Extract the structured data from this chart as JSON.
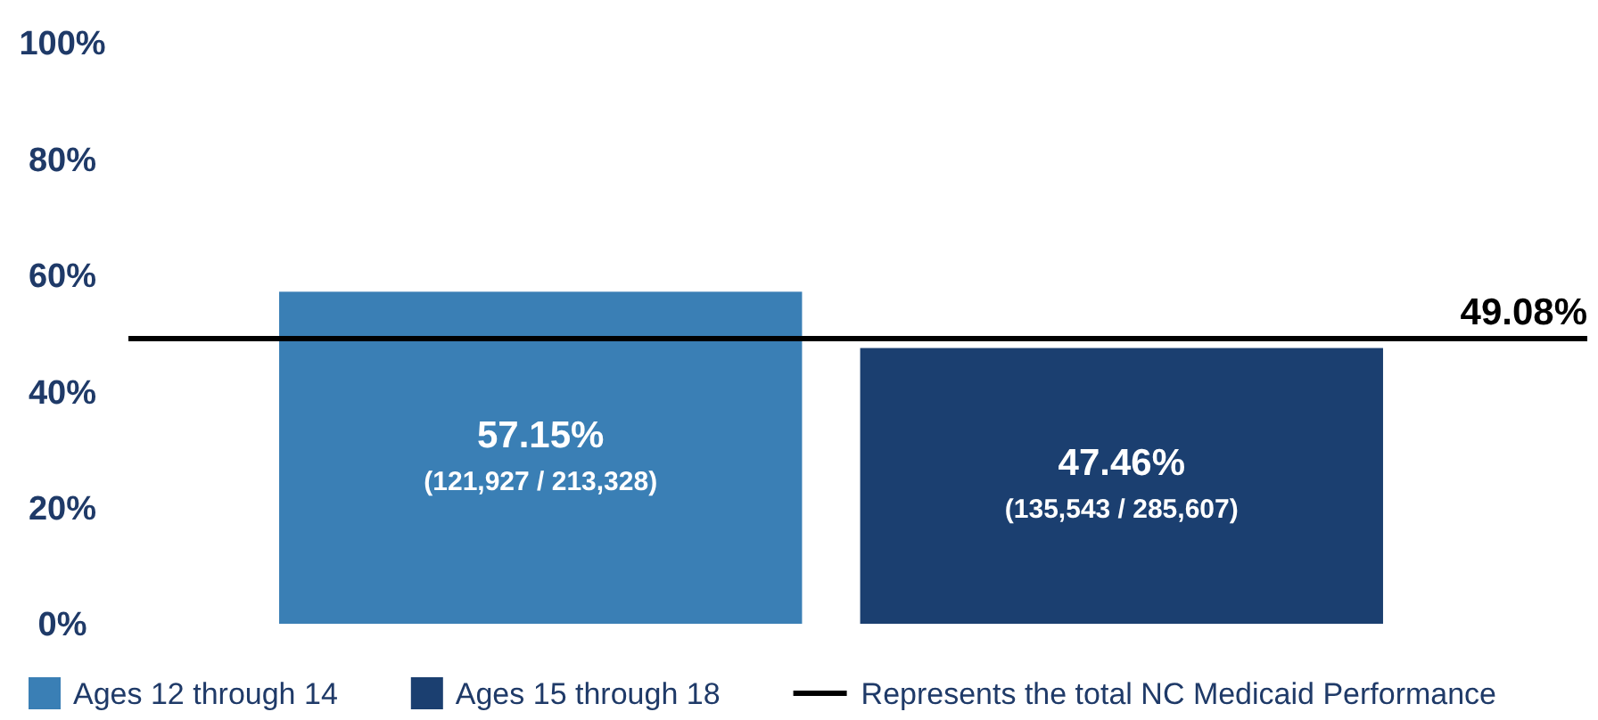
{
  "chart_data": {
    "type": "bar",
    "categories": [
      null,
      null
    ],
    "series": [
      {
        "name": "Ages 12 through 14",
        "color": "#3a7fb5",
        "values": [
          57.15,
          null
        ],
        "value_labels": [
          "57.15%\n(121,927 / 213,328)",
          null
        ]
      },
      {
        "name": "Ages 15 through 18",
        "color": "#1b3f70",
        "values": [
          null,
          47.46
        ],
        "value_labels": [
          null,
          "47.46%\n(135,543 / 285,607)"
        ]
      }
    ],
    "ylim": [
      0,
      100
    ],
    "yticks": [
      {
        "value": 0,
        "label": "0%"
      },
      {
        "value": 20,
        "label": "20%"
      },
      {
        "value": 40,
        "label": "40%"
      },
      {
        "value": 60,
        "label": "60%"
      },
      {
        "value": 80,
        "label": "80%"
      },
      {
        "value": 100,
        "label": "100%"
      }
    ],
    "ref_lines": [
      {
        "axis": "y",
        "value": 49.08,
        "label": "Represents the total NC Medicaid Performance",
        "color": "#000000"
      }
    ],
    "annotations": [
      {
        "text": "49.08%",
        "y": 49.08
      }
    ],
    "legend": "bottom"
  }
}
